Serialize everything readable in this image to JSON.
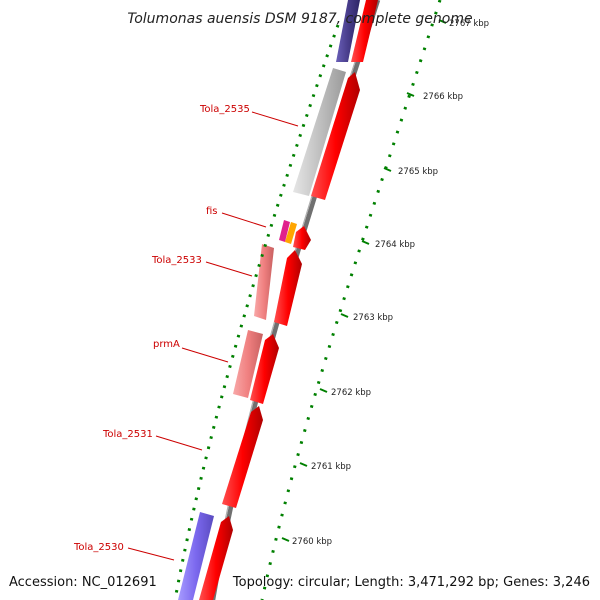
{
  "title": "Tolumonas auensis DSM 9187, complete genome",
  "accession": "Accession: NC_012691",
  "topology": "Topology: circular; Length: 3,471,292 bp; Genes: 3,246",
  "scale": {
    "unit_label": "kbp",
    "ticks": [
      {
        "label": "2767 kbp",
        "kb": 2767
      },
      {
        "label": "2766 kbp",
        "kb": 2766
      },
      {
        "label": "2765 kbp",
        "kb": 2765
      },
      {
        "label": "2764 kbp",
        "kb": 2764
      },
      {
        "label": "2763 kbp",
        "kb": 2763
      },
      {
        "label": "2762 kbp",
        "kb": 2762
      },
      {
        "label": "2761 kbp",
        "kb": 2761
      },
      {
        "label": "2760 kbp",
        "kb": 2760
      }
    ]
  },
  "genes": [
    {
      "name": "Tola_2535",
      "color": "#c0c0c0",
      "strand": "upper"
    },
    {
      "name": "fis",
      "color": "#e0208c",
      "strand": "upper"
    },
    {
      "name": "Tola_2533",
      "color": "#f08080",
      "strand": "upper"
    },
    {
      "name": "prmA",
      "color": "#f08080",
      "strand": "upper"
    },
    {
      "name": "Tola_2531",
      "color": "#ff0000",
      "strand": "lower"
    },
    {
      "name": "Tola_2530",
      "color": "#7b68ee",
      "strand": "upper"
    }
  ],
  "colors": {
    "cds": "#ff0000",
    "backbone": "#808080",
    "ticks": "#008000",
    "label": "#cc0000"
  }
}
